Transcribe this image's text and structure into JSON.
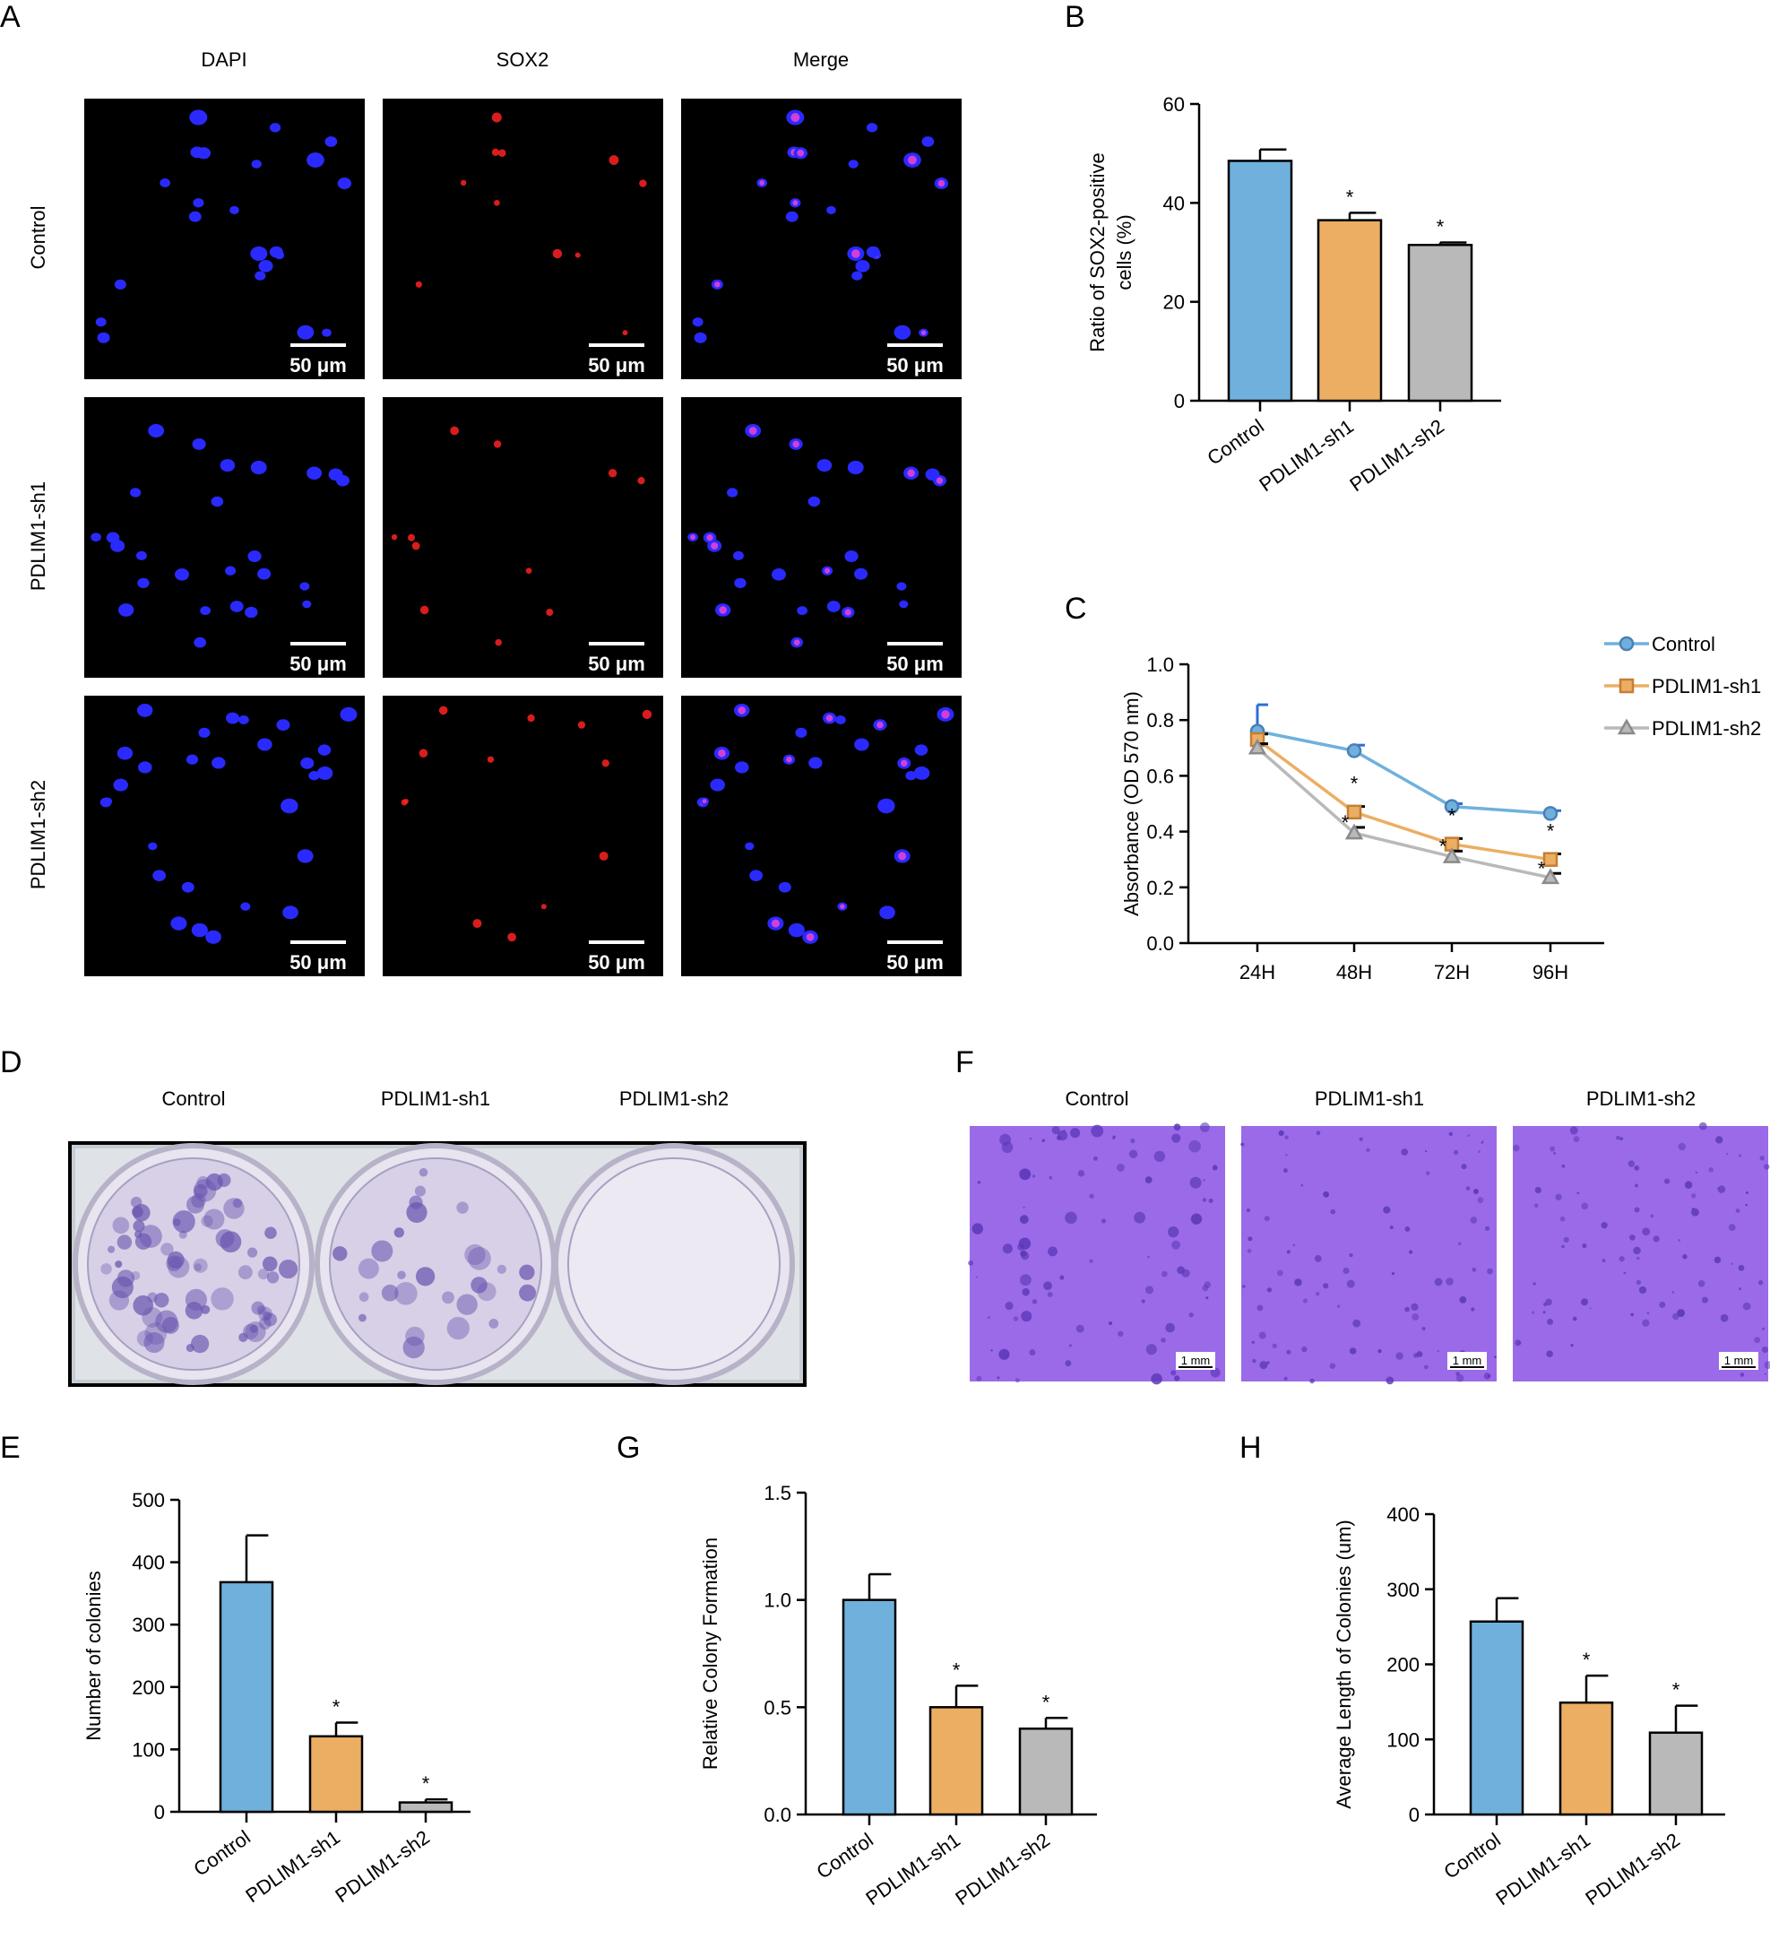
{
  "panels": {
    "A": {
      "letter": "A",
      "columns": [
        "DAPI",
        "SOX2",
        "Merge"
      ],
      "rows": [
        "Control",
        "PDLIM1-sh1",
        "PDLIM1-sh2"
      ],
      "scale_label": "50 μm"
    },
    "D": {
      "letter": "D",
      "columns": [
        "Control",
        "PDLIM1-sh1",
        "PDLIM1-sh2"
      ]
    },
    "F": {
      "letter": "F",
      "columns": [
        "Control",
        "PDLIM1-sh1",
        "PDLIM1-sh2"
      ],
      "scale_label": "1 mm"
    }
  },
  "colors": {
    "control": "#6fb1dc",
    "sh1": "#ebae63",
    "sh2": "#b9b9b9",
    "dapi": "#2a2aff",
    "sox2": "#ff2222",
    "plate_stain": "#6a55b0",
    "softagar_bg": "#9a6ae8"
  },
  "chart_data": [
    {
      "panel": "B",
      "type": "bar",
      "categories": [
        "Control",
        "PDLIM1-sh1",
        "PDLIM1-sh2"
      ],
      "values": [
        48.5,
        36.5,
        31.5
      ],
      "errors": [
        2.3,
        1.5,
        0.5
      ],
      "significance": [
        "",
        "*",
        "*"
      ],
      "ylabel": "Ratio of SOX2-positive cells (%)",
      "ylim": [
        0,
        60
      ],
      "yticks": [
        0,
        20,
        40,
        60
      ]
    },
    {
      "panel": "C",
      "type": "line",
      "x": [
        "24H",
        "48H",
        "72H",
        "96H"
      ],
      "ylabel": "Absorbance (OD 570 nm)",
      "ylim": [
        0,
        1.0
      ],
      "yticks": [
        "0.0",
        "0.2",
        "0.4",
        "0.6",
        "0.8",
        "1.0"
      ],
      "legend_position": "top-right",
      "series": [
        {
          "name": "Control",
          "values": [
            0.76,
            0.69,
            0.49,
            0.465
          ],
          "errors": [
            0.095,
            0.02,
            0.01,
            0.01
          ],
          "significance": [
            "",
            "",
            "",
            ""
          ]
        },
        {
          "name": "PDLIM1-sh1",
          "values": [
            0.73,
            0.47,
            0.355,
            0.3
          ],
          "errors": [
            0.02,
            0.02,
            0.02,
            0.02
          ],
          "significance": [
            "",
            "*",
            "*",
            "*"
          ]
        },
        {
          "name": "PDLIM1-sh2",
          "values": [
            0.7,
            0.395,
            0.31,
            0.235
          ],
          "errors": [
            0.015,
            0.02,
            0.02,
            0.015
          ],
          "significance": [
            "",
            "*",
            "*",
            "*"
          ]
        }
      ]
    },
    {
      "panel": "E",
      "type": "bar",
      "categories": [
        "Control",
        "PDLIM1-sh1",
        "PDLIM1-sh2"
      ],
      "values": [
        368,
        121,
        15
      ],
      "errors": [
        75,
        22,
        5
      ],
      "significance": [
        "",
        "*",
        "*"
      ],
      "ylabel": "Number of colonies",
      "ylim": [
        0,
        500
      ],
      "yticks": [
        0,
        100,
        200,
        300,
        400,
        500
      ]
    },
    {
      "panel": "G",
      "type": "bar",
      "categories": [
        "Control",
        "PDLIM1-sh1",
        "PDLIM1-sh2"
      ],
      "values": [
        1.0,
        0.5,
        0.4
      ],
      "errors": [
        0.12,
        0.1,
        0.05
      ],
      "significance": [
        "",
        "*",
        "*"
      ],
      "ylabel": "Relative Colony Formation",
      "ylim": [
        0,
        1.5
      ],
      "yticks": [
        "0.0",
        "0.5",
        "1.0",
        "1.5"
      ]
    },
    {
      "panel": "H",
      "type": "bar",
      "categories": [
        "Control",
        "PDLIM1-sh1",
        "PDLIM1-sh2"
      ],
      "values": [
        257,
        149,
        109
      ],
      "errors": [
        31,
        36,
        36
      ],
      "significance": [
        "",
        "*",
        "*"
      ],
      "ylabel": "Average Length of Colonies (um)",
      "ylim": [
        0,
        400
      ],
      "yticks": [
        0,
        100,
        200,
        300,
        400
      ]
    }
  ]
}
